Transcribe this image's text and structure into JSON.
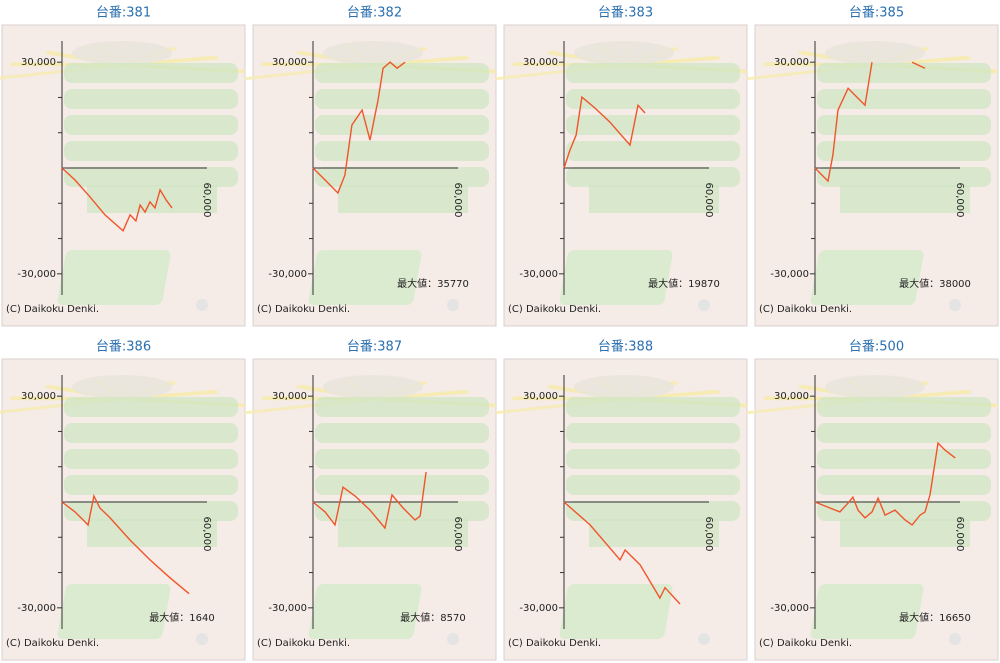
{
  "chart_data": [
    {
      "type": "line",
      "title": "台番:381",
      "color": "#f0552a",
      "x": [
        0,
        5400,
        11600,
        17800,
        25300,
        28200,
        30600,
        32300,
        34400,
        36400,
        38500,
        40600,
        43100,
        45500
      ],
      "values": [
        0,
        -3400,
        -8200,
        -13300,
        -17800,
        -13300,
        -15000,
        -10500,
        -12500,
        -9600,
        -11300,
        -6200,
        -9100,
        -11300
      ],
      "xlim": [
        0,
        60000
      ],
      "ylim": [
        -36000,
        36000
      ],
      "xticks": [
        {
          "value": 60000,
          "label": "60,000"
        }
      ],
      "yticks": [
        {
          "value": 30000,
          "label": "30,000"
        },
        {
          "value": -30000,
          "label": "-30,000"
        }
      ],
      "yminor_ticks": [
        -20000,
        -10000,
        10000,
        20000
      ],
      "copyright": "(C) Daikoku Denki."
    },
    {
      "type": "line",
      "title": "台番:382",
      "color": "#f0552a",
      "x": [
        0,
        5000,
        10300,
        13200,
        16100,
        20300,
        23600,
        26900,
        29000,
        31900,
        34800,
        38100
      ],
      "values": [
        0,
        -3400,
        -7100,
        -2000,
        12200,
        16400,
        7900,
        19200,
        28300,
        30000,
        28300,
        30000
      ],
      "xlim": [
        0,
        60000
      ],
      "ylim": [
        -36000,
        36000
      ],
      "xticks": [
        {
          "value": 60000,
          "label": "60,000"
        }
      ],
      "yticks": [
        {
          "value": 30000,
          "label": "30,000"
        },
        {
          "value": -30000,
          "label": "-30,000"
        }
      ],
      "yminor_ticks": [
        -20000,
        -10000,
        10000,
        20000
      ],
      "annotation": "最大値：35770",
      "copyright": "(C) Daikoku Denki."
    },
    {
      "type": "line",
      "title": "台番:383",
      "color": "#f0552a",
      "x": [
        0,
        2500,
        5000,
        7400,
        12800,
        19000,
        27300,
        30600,
        33500
      ],
      "values": [
        0,
        5100,
        9300,
        20100,
        17000,
        13000,
        6500,
        17800,
        15600
      ],
      "xlim": [
        0,
        60000
      ],
      "ylim": [
        -36000,
        36000
      ],
      "xticks": [
        {
          "value": 60000,
          "label": "60,000"
        }
      ],
      "yticks": [
        {
          "value": 30000,
          "label": "30,000"
        },
        {
          "value": -30000,
          "label": "-30,000"
        }
      ],
      "yminor_ticks": [
        -20000,
        -10000,
        10000,
        20000
      ],
      "annotation": "最大値：19870",
      "copyright": "(C) Daikoku Denki."
    },
    {
      "type": "line",
      "title": "台番:385",
      "color": "#f0552a",
      "x": [
        0,
        2900,
        5400,
        7400,
        9500,
        13700,
        17800,
        20700,
        23600,
        32000,
        40200,
        45500
      ],
      "values": [
        0,
        -2000,
        -3700,
        3700,
        16400,
        22600,
        19800,
        17800,
        30000,
        null,
        30000,
        28300
      ],
      "xlim": [
        0,
        60000
      ],
      "ylim": [
        -36000,
        36000
      ],
      "xticks": [
        {
          "value": 60000,
          "label": "60,000"
        }
      ],
      "yticks": [
        {
          "value": 30000,
          "label": "30,000"
        },
        {
          "value": -30000,
          "label": "-30,000"
        }
      ],
      "yminor_ticks": [
        -20000,
        -10000,
        10000,
        20000
      ],
      "annotation": "最大値：38000",
      "copyright": "(C) Daikoku Denki."
    },
    {
      "type": "line",
      "title": "台番:386",
      "color": "#f0552a",
      "x": [
        0,
        5400,
        10800,
        13200,
        15700,
        19900,
        28200,
        36400,
        44700,
        52600
      ],
      "values": [
        0,
        -2800,
        -6500,
        1700,
        -1700,
        -4500,
        -10800,
        -16400,
        -21500,
        -26000
      ],
      "xlim": [
        0,
        60000
      ],
      "ylim": [
        -36000,
        36000
      ],
      "xticks": [
        {
          "value": 60000,
          "label": "60,000"
        }
      ],
      "yticks": [
        {
          "value": 30000,
          "label": "30,000"
        },
        {
          "value": -30000,
          "label": "-30,000"
        }
      ],
      "yminor_ticks": [
        -20000,
        -10000,
        10000,
        20000
      ],
      "annotation": "最大値：1640",
      "copyright": "(C) Daikoku Denki."
    },
    {
      "type": "line",
      "title": "台番:387",
      "color": "#f0552a",
      "x": [
        0,
        5000,
        9100,
        12400,
        17400,
        23600,
        29800,
        32700,
        37300,
        42200,
        44300,
        46800
      ],
      "values": [
        0,
        -2800,
        -6500,
        4200,
        1700,
        -2300,
        -7400,
        2000,
        -1700,
        -5100,
        -4000,
        8500
      ],
      "xlim": [
        0,
        60000
      ],
      "ylim": [
        -36000,
        36000
      ],
      "xticks": [
        {
          "value": 60000,
          "label": "60,000"
        }
      ],
      "yticks": [
        {
          "value": 30000,
          "label": "30,000"
        },
        {
          "value": -30000,
          "label": "-30,000"
        }
      ],
      "yminor_ticks": [
        -20000,
        -10000,
        10000,
        20000
      ],
      "annotation": "最大値：8570",
      "copyright": "(C) Daikoku Denki."
    },
    {
      "type": "line",
      "title": "台番:388",
      "color": "#f0552a",
      "x": [
        0,
        10800,
        23200,
        25300,
        31500,
        39700,
        41800,
        48000
      ],
      "values": [
        0,
        -6500,
        -16400,
        -13600,
        -17800,
        -27200,
        -24300,
        -28900
      ],
      "xlim": [
        0,
        60000
      ],
      "ylim": [
        -36000,
        36000
      ],
      "xticks": [
        {
          "value": 60000,
          "label": "60,000"
        }
      ],
      "yticks": [
        {
          "value": 30000,
          "label": "30,000"
        },
        {
          "value": -30000,
          "label": "-30,000"
        }
      ],
      "yminor_ticks": [
        -20000,
        -10000,
        10000,
        20000
      ],
      "copyright": "(C) Daikoku Denki."
    },
    {
      "type": "line",
      "title": "台番:500",
      "color": "#f0552a",
      "x": [
        0,
        6200,
        10300,
        13700,
        15700,
        17800,
        20700,
        23600,
        26100,
        29000,
        33100,
        37300,
        40200,
        43500,
        45500,
        47600,
        50900,
        53800,
        58000
      ],
      "values": [
        0,
        -1700,
        -2800,
        -300,
        1400,
        -2300,
        -4500,
        -2800,
        1100,
        -3700,
        -2300,
        -5100,
        -6500,
        -3700,
        -2800,
        2000,
        16700,
        14700,
        12500
      ],
      "xlim": [
        0,
        60000
      ],
      "ylim": [
        -36000,
        36000
      ],
      "xticks": [
        {
          "value": 60000,
          "label": "60,000"
        }
      ],
      "yticks": [
        {
          "value": 30000,
          "label": "30,000"
        },
        {
          "value": -30000,
          "label": "-30,000"
        }
      ],
      "yminor_ticks": [
        -20000,
        -10000,
        10000,
        20000
      ],
      "annotation": "最大値：16650",
      "copyright": "(C) Daikoku Denki."
    }
  ]
}
